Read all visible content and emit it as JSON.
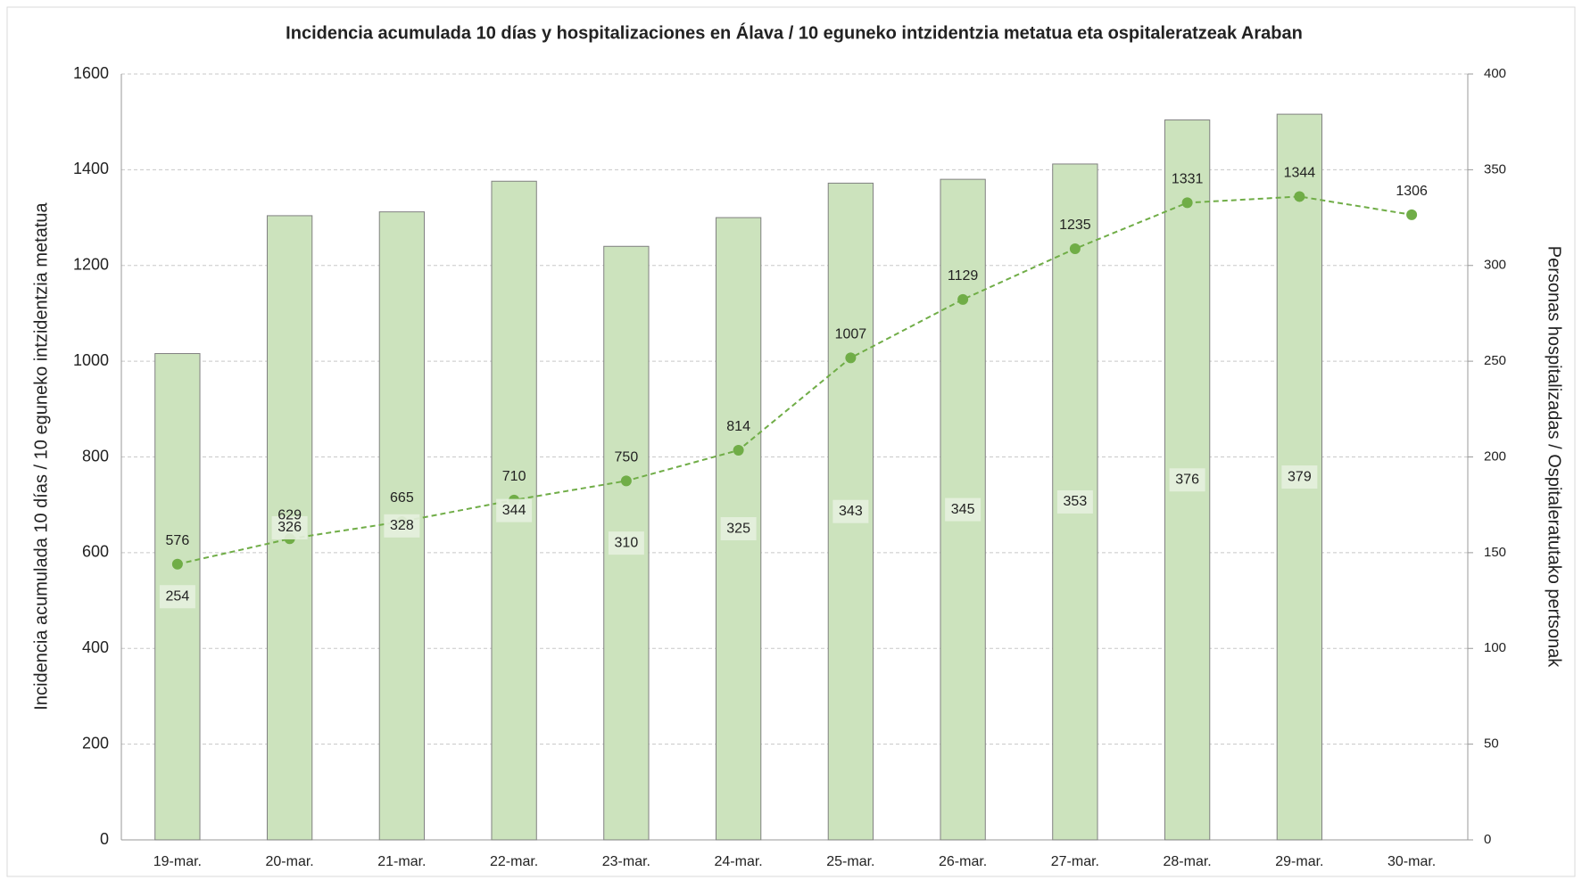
{
  "chart_data": {
    "type": "bar-line",
    "title": "Incidencia acumulada  10 días y hospitalizaciones en Álava / 10 eguneko intzidentzia metatua eta ospitaleratzeak Araban",
    "y_label": "Incidencia acumulada 10 días / 10 eguneko intzidentzia metatua",
    "y2_label": "Personas hospitalizadas / Ospitaleratutako pertsonak",
    "categories": [
      "19-mar.",
      "20-mar.",
      "21-mar.",
      "22-mar.",
      "23-mar.",
      "24-mar.",
      "25-mar.",
      "26-mar.",
      "27-mar.",
      "28-mar.",
      "29-mar.",
      "30-mar."
    ],
    "series": [
      {
        "type": "bar",
        "axis": "y2",
        "color": "#cce3bd",
        "values": [
          254,
          326,
          328,
          344,
          310,
          325,
          343,
          345,
          353,
          376,
          379,
          null
        ]
      },
      {
        "type": "line",
        "axis": "y",
        "color": "#70ad47",
        "values": [
          576,
          629,
          665,
          710,
          750,
          814,
          1007,
          1129,
          1235,
          1331,
          1344,
          1306
        ]
      }
    ],
    "ylim": [
      0,
      1600
    ],
    "yticks": [
      0,
      200,
      400,
      600,
      800,
      1000,
      1200,
      1400,
      1600
    ],
    "y2lim": [
      0,
      400
    ],
    "y2ticks": [
      0,
      50,
      100,
      150,
      200,
      250,
      300,
      350,
      400
    ],
    "grid": true
  }
}
